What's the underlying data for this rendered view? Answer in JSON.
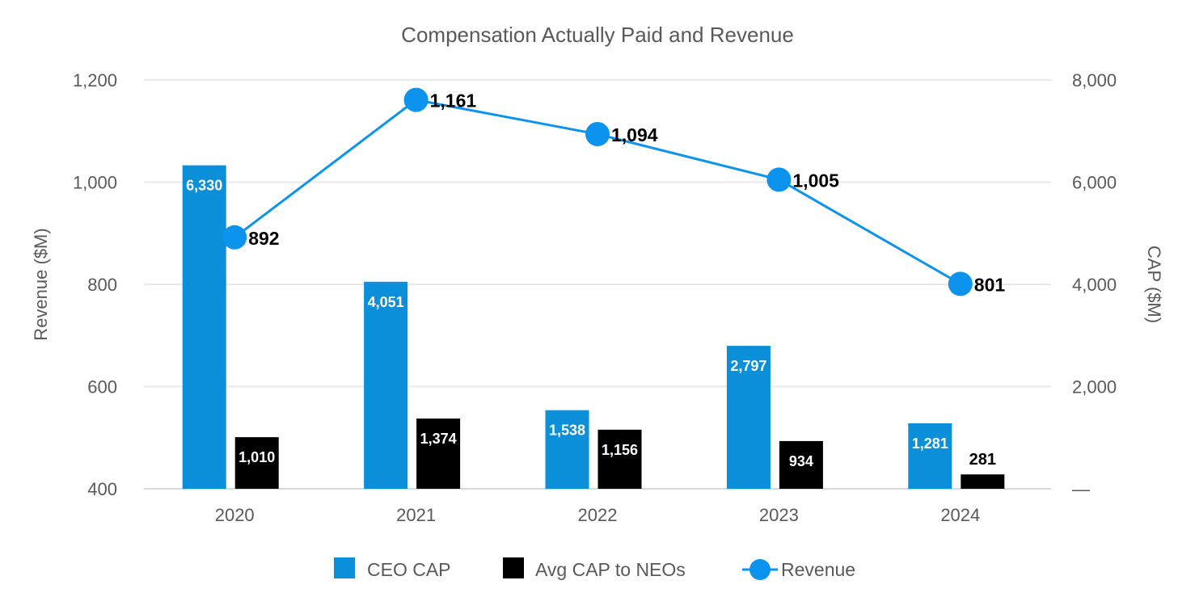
{
  "chart_data": {
    "type": "bar",
    "title": "Compensation Actually Paid and Revenue",
    "categories": [
      "2020",
      "2021",
      "2022",
      "2023",
      "2024"
    ],
    "y_left": {
      "label": "Revenue ($M)",
      "range": [
        400,
        1200
      ],
      "ticks": [
        "400",
        "600",
        "800",
        "1,000",
        "1,200"
      ],
      "tick_values": [
        400,
        600,
        800,
        1000,
        1200
      ]
    },
    "y_right": {
      "label": "CAP ($M)",
      "range": [
        0,
        8000
      ],
      "ticks": [
        "—",
        "2,000",
        "4,000",
        "6,000",
        "8,000"
      ],
      "tick_values": [
        0,
        2000,
        4000,
        6000,
        8000
      ]
    },
    "grid": true,
    "legend_position": "bottom",
    "series": [
      {
        "name": "CEO CAP",
        "type": "bar",
        "axis": "right",
        "color": "#0b8fd8",
        "values": [
          6330,
          4051,
          1538,
          2797,
          1281
        ],
        "labels": [
          "6,330",
          "4,051",
          "1,538",
          "2,797",
          "1,281"
        ]
      },
      {
        "name": "Avg CAP to NEOs",
        "type": "bar",
        "axis": "right",
        "color": "#000000",
        "values": [
          1010,
          1374,
          1156,
          934,
          281
        ],
        "labels": [
          "1,010",
          "1,374",
          "1,156",
          "934",
          "281"
        ]
      },
      {
        "name": "Revenue",
        "type": "line",
        "axis": "left",
        "color": "#0c93ee",
        "values": [
          892,
          1161,
          1094,
          1005,
          801
        ],
        "labels": [
          "892",
          "1,161",
          "1,094",
          "1,005",
          "801"
        ]
      }
    ]
  }
}
